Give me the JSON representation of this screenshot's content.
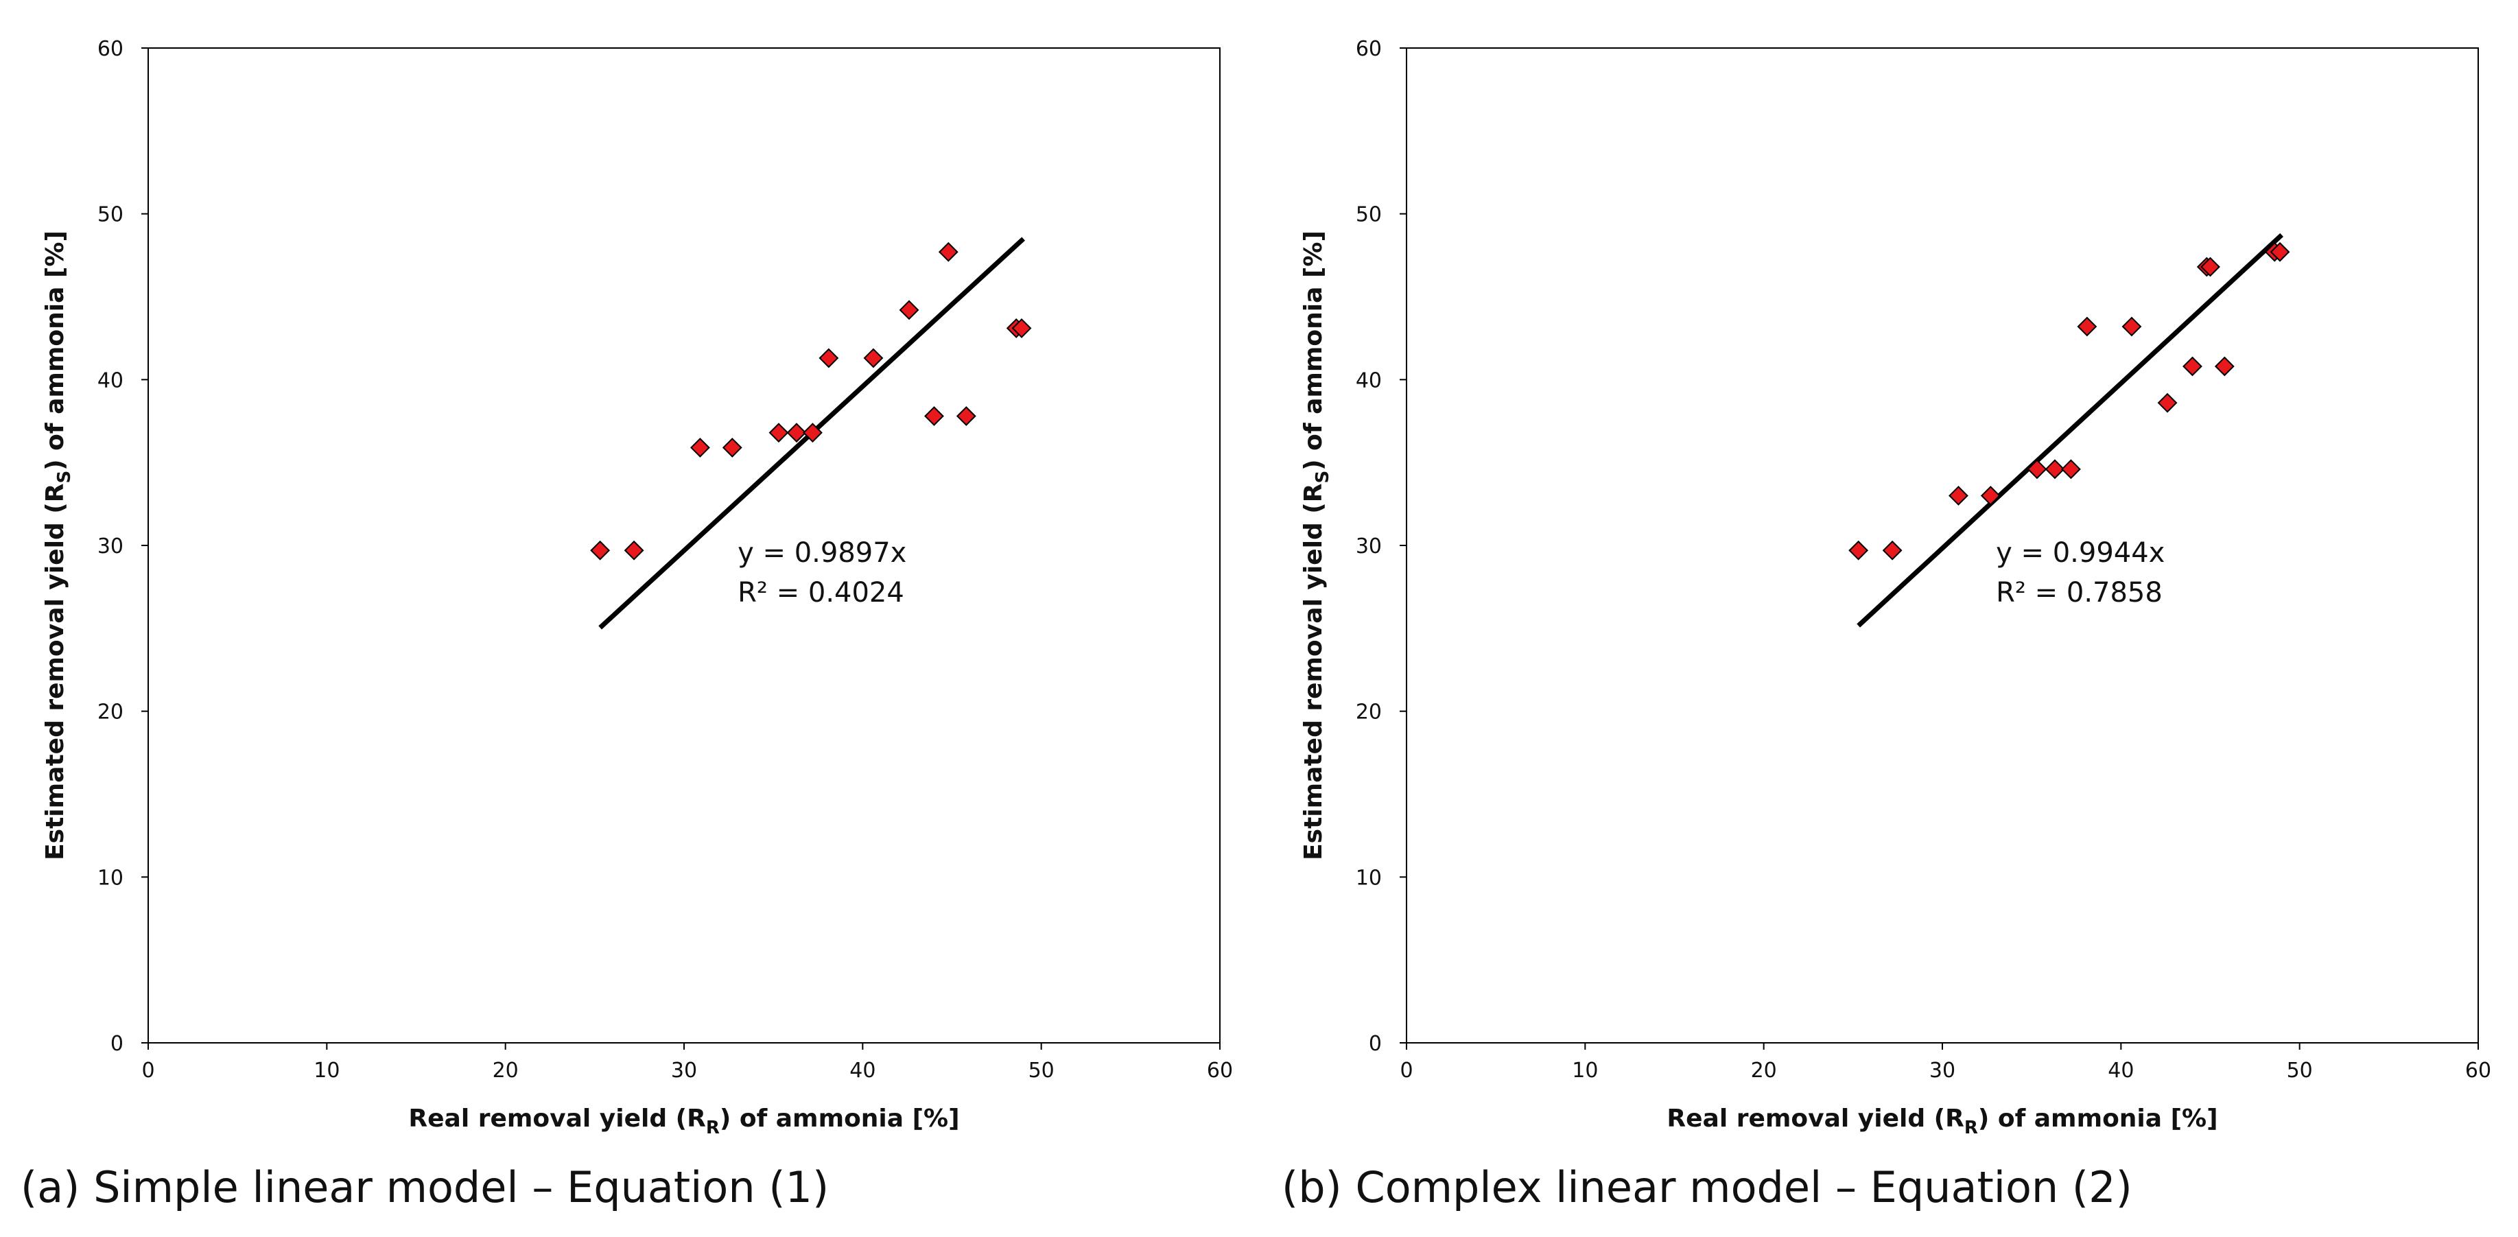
{
  "chart_data": [
    {
      "type": "scatter",
      "caption": "(a) Simple linear model – Equation (1)",
      "xlabel_pre": "Real removal yield (R",
      "xlabel_sub": "R",
      "xlabel_post": ") of ammonia [%]",
      "ylabel_pre": "Estimated removal yield (R",
      "ylabel_sub": "S",
      "ylabel_post": ") of ammonia [%]",
      "xlim": [
        0,
        60
      ],
      "ylim": [
        0,
        60
      ],
      "xticks": [
        "0",
        "10",
        "20",
        "30",
        "40",
        "50",
        "60"
      ],
      "yticks": [
        "0",
        "10",
        "20",
        "30",
        "40",
        "50",
        "60"
      ],
      "marker_color": "#e8191c",
      "trendline_color": "#000000",
      "points": [
        {
          "x": 25.3,
          "y": 29.7
        },
        {
          "x": 27.2,
          "y": 29.7
        },
        {
          "x": 30.9,
          "y": 35.9
        },
        {
          "x": 32.7,
          "y": 35.9
        },
        {
          "x": 35.3,
          "y": 36.8
        },
        {
          "x": 36.3,
          "y": 36.8
        },
        {
          "x": 37.2,
          "y": 36.8
        },
        {
          "x": 38.1,
          "y": 41.3
        },
        {
          "x": 40.6,
          "y": 41.3
        },
        {
          "x": 42.6,
          "y": 44.2
        },
        {
          "x": 44.0,
          "y": 37.8
        },
        {
          "x": 44.8,
          "y": 47.7
        },
        {
          "x": 45.8,
          "y": 37.8
        },
        {
          "x": 48.6,
          "y": 43.1
        },
        {
          "x": 48.9,
          "y": 43.1
        }
      ],
      "trendline": {
        "slope": 0.9897,
        "x_start": 25.3,
        "x_end": 49.0
      },
      "equation": "y = 0.9897x",
      "r2": "R² = 0.4024"
    },
    {
      "type": "scatter",
      "caption": "(b) Complex linear model – Equation (2)",
      "xlabel_pre": "Real removal yield (R",
      "xlabel_sub": "R",
      "xlabel_post": ") of ammonia [%]",
      "ylabel_pre": "Estimated removal yield (R",
      "ylabel_sub": "S",
      "ylabel_post": ") of ammonia [%]",
      "xlim": [
        0,
        60
      ],
      "ylim": [
        0,
        60
      ],
      "xticks": [
        "0",
        "10",
        "20",
        "30",
        "40",
        "50",
        "60"
      ],
      "yticks": [
        "0",
        "10",
        "20",
        "30",
        "40",
        "50",
        "60"
      ],
      "marker_color": "#e8191c",
      "trendline_color": "#000000",
      "points": [
        {
          "x": 25.3,
          "y": 29.7
        },
        {
          "x": 27.2,
          "y": 29.7
        },
        {
          "x": 30.9,
          "y": 33.0
        },
        {
          "x": 32.7,
          "y": 33.0
        },
        {
          "x": 35.3,
          "y": 34.6
        },
        {
          "x": 36.3,
          "y": 34.6
        },
        {
          "x": 37.2,
          "y": 34.6
        },
        {
          "x": 38.1,
          "y": 43.2
        },
        {
          "x": 40.6,
          "y": 43.2
        },
        {
          "x": 42.6,
          "y": 38.6
        },
        {
          "x": 44.0,
          "y": 40.8
        },
        {
          "x": 44.8,
          "y": 46.8
        },
        {
          "x": 45.0,
          "y": 46.8
        },
        {
          "x": 45.8,
          "y": 40.8
        },
        {
          "x": 48.6,
          "y": 47.7
        },
        {
          "x": 48.9,
          "y": 47.7
        }
      ],
      "trendline": {
        "slope": 0.9944,
        "x_start": 25.3,
        "x_end": 49.0
      },
      "equation": "y = 0.9944x",
      "r2": "R² = 0.7858"
    }
  ]
}
